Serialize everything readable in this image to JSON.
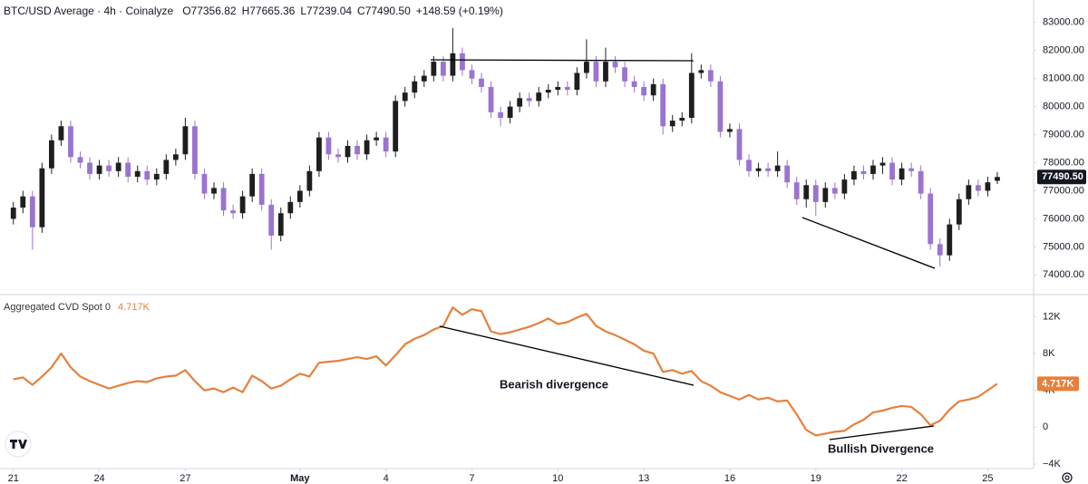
{
  "chart_data": [
    {
      "type": "candlestick",
      "title": "BTC/USD Average · 4h · Coinalyze",
      "ohlc_labels": [
        "O77356.82",
        "H77665.36",
        "L77239.04",
        "C77490.50"
      ],
      "change_label": "+148.59 (+0.19%)",
      "last_value_label": "77490.50",
      "up_color": "#1e1e1e",
      "down_color": "#9a74cf",
      "xlim": [
        -1.4,
        106.8
      ],
      "ylim": [
        73300,
        83800
      ],
      "yticks": [
        {
          "value": 74000,
          "label": "74000.00"
        },
        {
          "value": 75000,
          "label": "75000.00"
        },
        {
          "value": 76000,
          "label": "76000.00"
        },
        {
          "value": 77000,
          "label": "77000.00"
        },
        {
          "value": 78000,
          "label": "78000.00"
        },
        {
          "value": 79000,
          "label": "79000.00"
        },
        {
          "value": 80000,
          "label": "80000.00"
        },
        {
          "value": 81000,
          "label": "81000.00"
        },
        {
          "value": 82000,
          "label": "82000.00"
        },
        {
          "value": 83000,
          "label": "83000.00"
        }
      ],
      "x": [
        0,
        1,
        2,
        3,
        4,
        5,
        6,
        7,
        8,
        9,
        10,
        11,
        12,
        13,
        14,
        15,
        16,
        17,
        18,
        19,
        20,
        21,
        22,
        23,
        24,
        25,
        26,
        27,
        28,
        29,
        30,
        31,
        32,
        33,
        34,
        35,
        36,
        37,
        38,
        39,
        40,
        41,
        42,
        43,
        44,
        45,
        46,
        47,
        48,
        49,
        50,
        51,
        52,
        53,
        54,
        55,
        56,
        57,
        58,
        59,
        60,
        61,
        62,
        63,
        64,
        65,
        66,
        67,
        68,
        69,
        70,
        71,
        72,
        73,
        74,
        75,
        76,
        77,
        78,
        79,
        80,
        81,
        82,
        83,
        84,
        85,
        86,
        87,
        88,
        89,
        90,
        91,
        92,
        93,
        94,
        95,
        96,
        97,
        98,
        99,
        100,
        101,
        102,
        103
      ],
      "open": [
        76000,
        76400,
        76800,
        75700,
        77800,
        78800,
        79300,
        78200,
        78000,
        77600,
        77900,
        77700,
        78000,
        77500,
        77700,
        77400,
        77600,
        78100,
        78300,
        79300,
        77600,
        76900,
        77100,
        76300,
        76200,
        76800,
        77600,
        76500,
        75400,
        76200,
        76600,
        77000,
        77700,
        78900,
        78300,
        78200,
        78600,
        78300,
        78800,
        78900,
        78400,
        80200,
        80500,
        80900,
        81100,
        81600,
        81100,
        81900,
        81300,
        81000,
        80700,
        79800,
        79600,
        80000,
        80300,
        80200,
        80500,
        80600,
        80700,
        80600,
        81200,
        81600,
        80900,
        81600,
        81400,
        80900,
        80700,
        80400,
        80800,
        79300,
        79500,
        79600,
        81200,
        81300,
        80900,
        79100,
        79200,
        78100,
        77700,
        77800,
        77700,
        77900,
        77300,
        76700,
        77200,
        76600,
        77100,
        76900,
        77400,
        77700,
        77600,
        77900,
        78000,
        77400,
        77800,
        77700,
        76900,
        75100,
        74700,
        75800,
        76700,
        77200,
        77000,
        77356.82
      ],
      "high": [
        76600,
        77000,
        77000,
        78000,
        79000,
        79500,
        79500,
        78400,
        78200,
        78100,
        78100,
        78200,
        78200,
        77900,
        77900,
        77800,
        78300,
        78500,
        79600,
        79500,
        77800,
        77300,
        77300,
        76500,
        77000,
        77800,
        77800,
        76700,
        76400,
        76800,
        77200,
        77900,
        79100,
        79100,
        78500,
        78800,
        78800,
        79000,
        79100,
        79100,
        80400,
        80700,
        81100,
        81300,
        81800,
        81800,
        82800,
        82100,
        81500,
        81200,
        80900,
        80000,
        80200,
        80500,
        80500,
        80700,
        80800,
        80900,
        80900,
        81400,
        82400,
        81800,
        82100,
        81800,
        81600,
        81100,
        80900,
        81000,
        81000,
        79700,
        79800,
        81900,
        81500,
        81500,
        81100,
        79400,
        79400,
        78300,
        78000,
        78000,
        78400,
        78100,
        77500,
        77400,
        77400,
        77300,
        77300,
        77600,
        77900,
        77900,
        78100,
        78200,
        78200,
        78000,
        78000,
        77900,
        77100,
        75300,
        76000,
        76900,
        77400,
        77400,
        77500,
        77665.36
      ],
      "low": [
        75800,
        76200,
        74900,
        75500,
        77600,
        78600,
        78000,
        77800,
        77400,
        77400,
        77500,
        77500,
        77300,
        77300,
        77200,
        77200,
        77400,
        77900,
        78100,
        77400,
        76700,
        76700,
        76100,
        76000,
        76000,
        76600,
        76300,
        74900,
        75200,
        76000,
        76400,
        76800,
        77500,
        78100,
        78000,
        78000,
        78100,
        78100,
        78600,
        78200,
        78200,
        80000,
        80300,
        80700,
        80900,
        80900,
        80900,
        81100,
        80800,
        80500,
        79600,
        79300,
        79400,
        79800,
        80000,
        80000,
        80300,
        80400,
        80400,
        80400,
        81000,
        80700,
        80700,
        81200,
        80700,
        80500,
        80200,
        80200,
        79000,
        79100,
        79300,
        79400,
        81000,
        80700,
        78900,
        78900,
        77900,
        77500,
        77500,
        77500,
        77500,
        77100,
        76500,
        76400,
        76100,
        76400,
        76700,
        76700,
        77200,
        77400,
        77400,
        77600,
        77200,
        77200,
        77500,
        76700,
        74900,
        74300,
        74500,
        75600,
        76500,
        76800,
        76800,
        77239.04
      ],
      "close": [
        76400,
        76800,
        75700,
        77800,
        78800,
        79300,
        78200,
        78000,
        77600,
        77900,
        77700,
        78000,
        77500,
        77700,
        77400,
        77600,
        78100,
        78300,
        79300,
        77600,
        76900,
        77100,
        76300,
        76200,
        76800,
        77600,
        76500,
        75400,
        76200,
        76600,
        77000,
        77700,
        78900,
        78300,
        78200,
        78600,
        78300,
        78800,
        78900,
        78400,
        80200,
        80500,
        80900,
        81100,
        81600,
        81100,
        81900,
        81300,
        81000,
        80700,
        79800,
        79600,
        80000,
        80300,
        80200,
        80500,
        80600,
        80700,
        80600,
        81200,
        81600,
        80900,
        81600,
        81400,
        80900,
        80700,
        80400,
        80800,
        79300,
        79500,
        79600,
        81200,
        81300,
        80900,
        79100,
        79200,
        78100,
        77700,
        77800,
        77700,
        77900,
        77300,
        76700,
        77200,
        76600,
        77100,
        76900,
        77400,
        77700,
        77600,
        77900,
        78000,
        77400,
        77800,
        77700,
        76900,
        75100,
        74700,
        75800,
        76700,
        77200,
        77000,
        77300,
        77490.5
      ]
    },
    {
      "type": "line",
      "title": "Aggregated CVD Spot 0",
      "last_value_label": "4.717K",
      "annotations": [
        "Bearish divergence",
        "Bullish Divergence"
      ],
      "xlim": [
        -1.4,
        106.8
      ],
      "ylim": [
        -4.3,
        14.2
      ],
      "yticks": [
        {
          "value": -4,
          "label": "−4K"
        },
        0,
        {
          "value": 4,
          "label": "4K"
        },
        {
          "value": 8,
          "label": "8K"
        },
        {
          "value": 12,
          "label": "12K"
        }
      ],
      "xticks": [
        {
          "value": 0,
          "label": "21"
        },
        {
          "value": 9,
          "label": "24"
        },
        {
          "value": 18,
          "label": "27"
        },
        {
          "value": 30,
          "label": "May"
        },
        {
          "value": 39,
          "label": "4"
        },
        {
          "value": 48,
          "label": "7"
        },
        {
          "value": 57,
          "label": "10"
        },
        {
          "value": 66,
          "label": "13"
        },
        {
          "value": 75,
          "label": "16"
        },
        {
          "value": 84,
          "label": "19"
        },
        {
          "value": 93,
          "label": "22"
        },
        {
          "value": 102,
          "label": "25"
        }
      ],
      "x": [
        0,
        1,
        2,
        3,
        4,
        5,
        6,
        7,
        8,
        9,
        10,
        11,
        12,
        13,
        14,
        15,
        16,
        17,
        18,
        19,
        20,
        21,
        22,
        23,
        24,
        25,
        26,
        27,
        28,
        29,
        30,
        31,
        32,
        33,
        34,
        35,
        36,
        37,
        38,
        39,
        40,
        41,
        42,
        43,
        44,
        45,
        46,
        47,
        48,
        49,
        50,
        51,
        52,
        53,
        54,
        55,
        56,
        57,
        58,
        59,
        60,
        61,
        62,
        63,
        64,
        65,
        66,
        67,
        68,
        69,
        70,
        71,
        72,
        73,
        74,
        75,
        76,
        77,
        78,
        79,
        80,
        81,
        82,
        83,
        84,
        85,
        86,
        87,
        88,
        89,
        90,
        91,
        92,
        93,
        94,
        95,
        96,
        97,
        98,
        99,
        100,
        101,
        102,
        103
      ],
      "series": [
        {
          "name": "Aggregated CVD Spot 0",
          "color": "#e6803c",
          "values": [
            5.2,
            5.4,
            4.6,
            5.5,
            6.5,
            8.0,
            6.5,
            5.5,
            5.0,
            4.6,
            4.2,
            4.5,
            4.8,
            5.0,
            4.9,
            5.3,
            5.5,
            5.6,
            6.2,
            5.0,
            4.0,
            4.2,
            3.8,
            4.3,
            3.8,
            5.6,
            5.0,
            4.2,
            4.5,
            5.2,
            5.8,
            5.5,
            7.0,
            7.1,
            7.2,
            7.4,
            7.6,
            7.4,
            7.7,
            6.7,
            7.8,
            9.0,
            9.6,
            10.0,
            10.6,
            11.0,
            13.0,
            12.2,
            12.8,
            12.6,
            10.4,
            10.1,
            10.3,
            10.6,
            10.9,
            11.3,
            11.8,
            11.2,
            11.4,
            11.9,
            12.3,
            11.0,
            10.4,
            10.0,
            9.5,
            9.0,
            8.3,
            8.0,
            6.0,
            6.2,
            5.8,
            6.1,
            5.0,
            4.5,
            3.8,
            3.4,
            3.0,
            3.5,
            3.0,
            3.2,
            2.8,
            2.9,
            1.4,
            -0.3,
            -0.9,
            -0.7,
            -0.5,
            -0.4,
            0.3,
            0.8,
            1.6,
            1.8,
            2.1,
            2.3,
            2.2,
            1.4,
            0.2,
            0.7,
            1.9,
            2.8,
            3.0,
            3.3,
            4.0,
            4.717
          ]
        }
      ]
    }
  ]
}
